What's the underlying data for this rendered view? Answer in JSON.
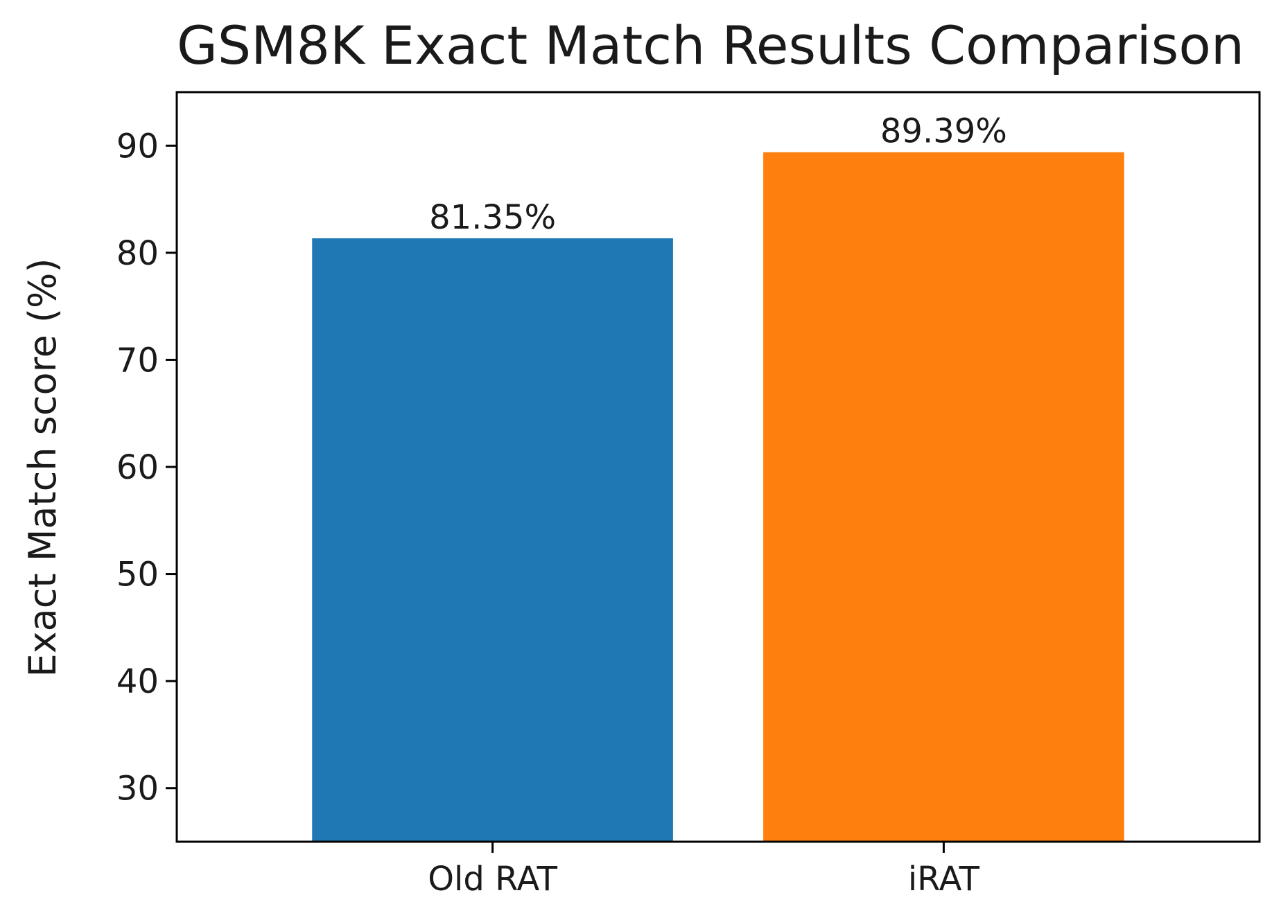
{
  "chart_data": {
    "type": "bar",
    "title": "GSM8K Exact Match Results Comparison",
    "xlabel": "",
    "ylabel": "Exact Match score (%)",
    "categories": [
      "Old RAT",
      "iRAT"
    ],
    "values": [
      81.35,
      89.39
    ],
    "data_labels": [
      "81.35%",
      "89.39%"
    ],
    "colors": [
      "#1f77b4",
      "#ff7f0e"
    ],
    "ylim": [
      25,
      95
    ],
    "yticks": [
      30,
      40,
      50,
      60,
      70,
      80,
      90
    ],
    "grid": false,
    "legend": "none"
  }
}
